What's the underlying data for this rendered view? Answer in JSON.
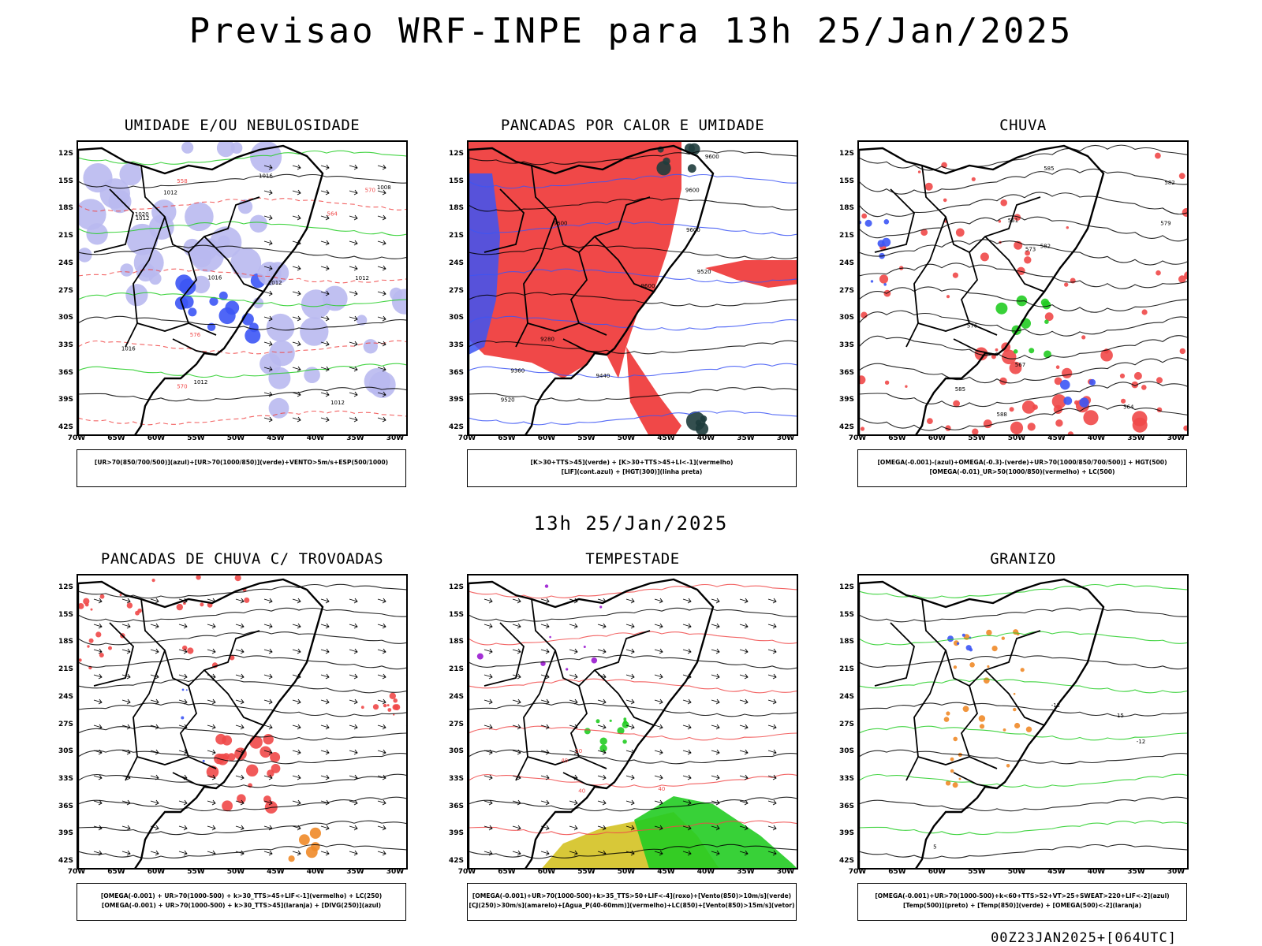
{
  "header": {
    "title": "Previsao WRF-INPE  para 13h 25/Jan/2025"
  },
  "middle": {
    "subtitle": "13h 25/Jan/2025"
  },
  "footer": {
    "run_info": "00Z23JAN2025+[064UTC]"
  },
  "axes": {
    "lat_labels": [
      "12S",
      "15S",
      "18S",
      "21S",
      "24S",
      "27S",
      "30S",
      "33S",
      "36S",
      "39S",
      "42S"
    ],
    "lon_labels": [
      "70W",
      "65W",
      "60W",
      "55W",
      "50W",
      "45W",
      "40W",
      "35W",
      "30W"
    ]
  },
  "panels": [
    {
      "title": "UMIDADE E/OU NEBULOSIDADE",
      "legend": [
        "[UR>70(850/700/500)](azul)+[UR>70(1000/850)](verde)+VENTO>5m/s+ESP(500/1000)"
      ],
      "contour_labels": [
        "1012",
        "1012",
        "1016",
        "1012",
        "1016",
        "1012",
        "1012",
        "570",
        "576",
        "570",
        "564",
        "558",
        "1020",
        "1008",
        "1012",
        "1016"
      ]
    },
    {
      "title": "PANCADAS POR CALOR E UMIDADE",
      "legend": [
        "[K>30+TTS>45](verde) + [K>30+TTS>45+LI<-1](vermelho)",
        "[LIF](cont.azul) + [HGT(300)](linha preta)"
      ],
      "contour_labels": [
        "9600",
        "9600",
        "9600",
        "9600",
        "9600",
        "9520",
        "9520",
        "9440",
        "9360",
        "9280"
      ]
    },
    {
      "title": "CHUVA",
      "legend": [
        "[OMEGA(-0.001)-(azul)+OMEGA(-0.3)-(verde)+UR>70(1000/850/700/500)] + HGT(500)",
        "[OMEGA(-0.01)_UR>50(1000/850)(vermelho) + LC(500)"
      ],
      "contour_labels": [
        "585",
        "585",
        "582",
        "582",
        "579",
        "576",
        "573",
        "567",
        "564",
        "561",
        "588"
      ]
    },
    {
      "title": "PANCADAS DE CHUVA C/ TROVOADAS",
      "legend": [
        "[OMEGA(-0.001) + UR>70(1000-500) + k>30_TTS>45+LIF<-1](vermelho) + LC(250)",
        "[OMEGA(-0.001) + UR>70(1000-500) + k>30_TTS>45](laranja) + [DIVG(250)](azul)"
      ],
      "contour_labels": []
    },
    {
      "title": "TEMPESTADE",
      "legend": [
        "[OMEGA(-0.001)+UR>70(1000-500)+k>35_TTS>50+LIF<-4](roxo)+[Vento(850)>10m/s](verde)",
        "[CJ(250)>30m/s](amarelo)+[Agua_P(40-60mm)](vermelho)+LC(850)+[Vento(850)>15m/s](vetor)"
      ],
      "contour_labels": [
        "50",
        "40",
        "40",
        "40"
      ]
    },
    {
      "title": "GRANIZO",
      "legend": [
        "[OMEGA(-0.001)+UR>70(1000-500)+k<60+TTS>52+VT>25+SWEAT>220+LIF<-2](azul)",
        "[Temp(500)](preto) + [Temp(850)](verde) + [OMEGA(500)<-2](laranja)"
      ],
      "contour_labels": [
        "15",
        "-12",
        "-12",
        "5"
      ]
    }
  ],
  "chart_data": [
    {
      "type": "map",
      "title": "UMIDADE E/OU NEBULOSIDADE",
      "lat_range": [
        "12S",
        "42S"
      ],
      "lon_range": [
        "70W",
        "30W"
      ]
    },
    {
      "type": "map",
      "title": "PANCADAS POR CALOR E UMIDADE",
      "lat_range": [
        "12S",
        "42S"
      ],
      "lon_range": [
        "70W",
        "30W"
      ]
    },
    {
      "type": "map",
      "title": "CHUVA",
      "lat_range": [
        "12S",
        "42S"
      ],
      "lon_range": [
        "70W",
        "30W"
      ]
    },
    {
      "type": "map",
      "title": "PANCADAS DE CHUVA C/ TROVOADAS",
      "lat_range": [
        "12S",
        "42S"
      ],
      "lon_range": [
        "70W",
        "30W"
      ]
    },
    {
      "type": "map",
      "title": "TEMPESTADE",
      "lat_range": [
        "12S",
        "42S"
      ],
      "lon_range": [
        "70W",
        "30W"
      ]
    },
    {
      "type": "map",
      "title": "GRANIZO",
      "lat_range": [
        "12S",
        "42S"
      ],
      "lon_range": [
        "70W",
        "30W"
      ]
    }
  ],
  "colors": {
    "blue": "#3c55f5",
    "lavender": "#b9b9f0",
    "green": "#22cc22",
    "red": "#f04848",
    "orange": "#f08a28",
    "yellow": "#d8c838",
    "purple": "#9a1ad0",
    "darkteal": "#1e3c3c"
  }
}
